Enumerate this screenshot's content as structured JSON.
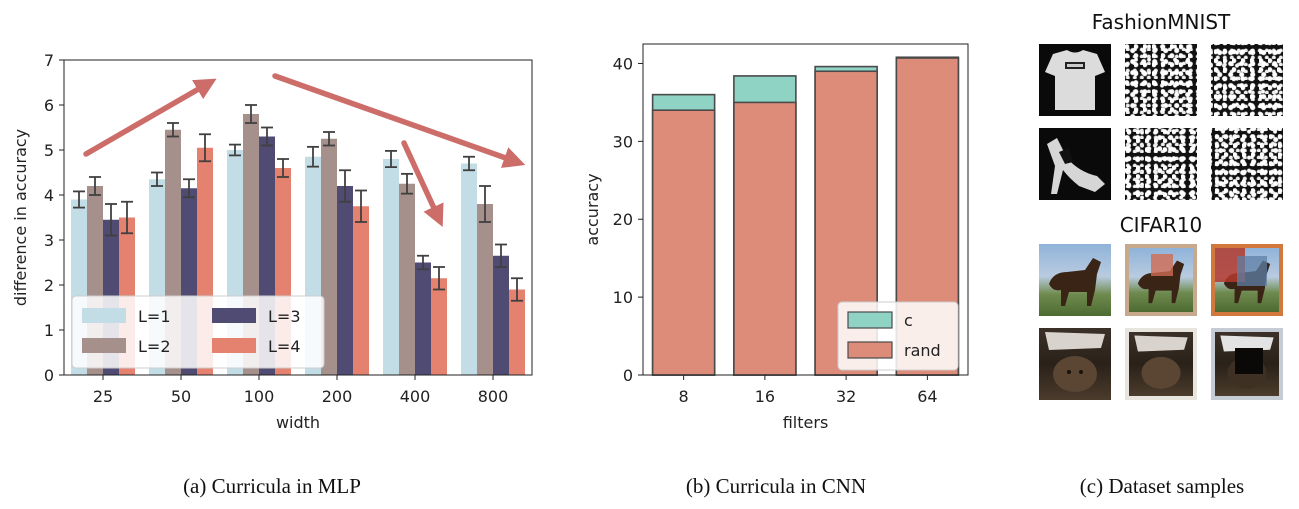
{
  "chart_data": [
    {
      "type": "bar",
      "xlabel": "width",
      "ylabel": "difference in accuracy",
      "ylim": [
        0,
        7
      ],
      "yticks": [
        0,
        1,
        2,
        3,
        4,
        5,
        6,
        7
      ],
      "categories": [
        "25",
        "50",
        "100",
        "200",
        "400",
        "800"
      ],
      "legend_placement": "lower-left",
      "series": [
        {
          "name": "L=1",
          "color": "#c2dde6",
          "values": [
            3.9,
            4.35,
            5.0,
            4.85,
            4.8,
            4.7
          ],
          "errors": [
            0.18,
            0.15,
            0.12,
            0.22,
            0.18,
            0.15
          ]
        },
        {
          "name": "L=2",
          "color": "#a6908c",
          "values": [
            4.2,
            5.45,
            5.8,
            5.25,
            4.25,
            3.8
          ],
          "errors": [
            0.2,
            0.15,
            0.2,
            0.15,
            0.22,
            0.4
          ]
        },
        {
          "name": "L=3",
          "color": "#4f4b73",
          "values": [
            3.45,
            4.15,
            5.3,
            4.2,
            2.5,
            2.65
          ],
          "errors": [
            0.35,
            0.2,
            0.2,
            0.35,
            0.15,
            0.25
          ]
        },
        {
          "name": "L=4",
          "color": "#e4826f",
          "values": [
            3.5,
            5.05,
            4.6,
            3.75,
            2.15,
            1.9
          ],
          "errors": [
            0.35,
            0.3,
            0.2,
            0.35,
            0.25,
            0.25
          ]
        }
      ],
      "annotations": [
        {
          "type": "arrow",
          "direction": "up",
          "color": "#cd6d6a"
        },
        {
          "type": "arrow",
          "direction": "down",
          "color": "#cd6d6a"
        },
        {
          "type": "arrow",
          "direction": "down",
          "color": "#cd6d6a"
        }
      ]
    },
    {
      "type": "bar",
      "stacked": "overlay",
      "xlabel": "filters",
      "ylabel": "accuracy",
      "ylim": [
        0,
        42.5
      ],
      "yticks": [
        0,
        10,
        20,
        30,
        40
      ],
      "categories": [
        "8",
        "16",
        "32",
        "64"
      ],
      "legend_placement": "lower-right",
      "series": [
        {
          "name": "c",
          "color": "#8fd3c5",
          "values": [
            36.0,
            38.4,
            39.6,
            40.8
          ]
        },
        {
          "name": "rand",
          "color": "#de8c7a",
          "values": [
            34.0,
            35.0,
            39.0,
            40.7
          ]
        }
      ]
    }
  ],
  "captions": {
    "a": "(a) Curricula in MLP",
    "b": "(b) Curricula in CNN",
    "c": "(c) Dataset samples"
  },
  "samples": {
    "title_top": "FashionMNIST",
    "title_bottom": "CIFAR10"
  }
}
